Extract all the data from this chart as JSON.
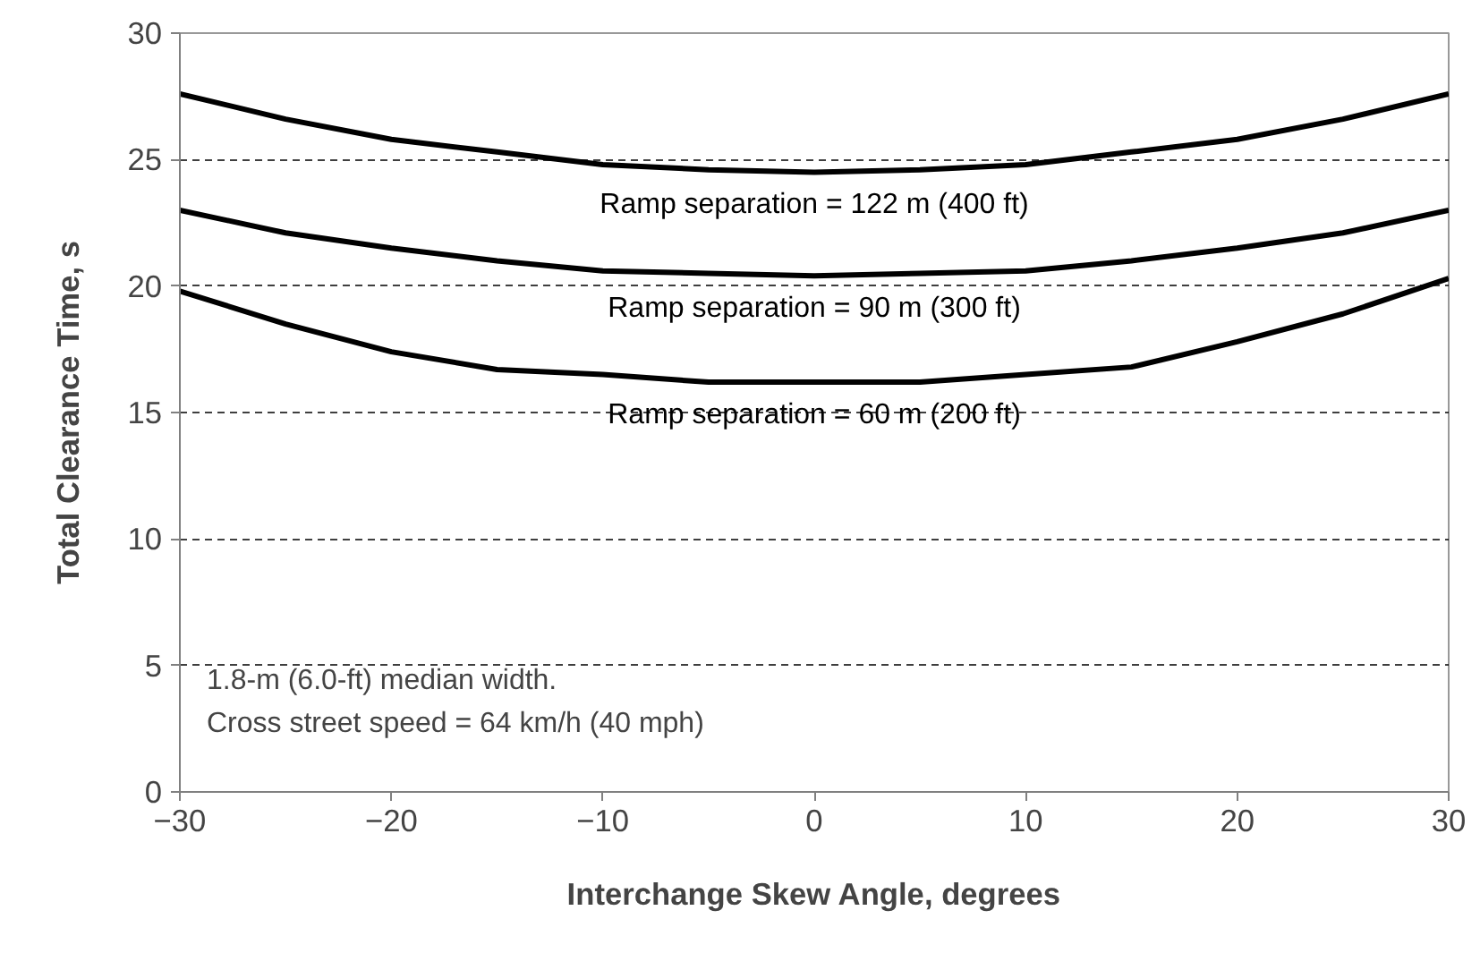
{
  "chart_data": {
    "type": "line",
    "xlabel": "Interchange Skew Angle, degrees",
    "ylabel": "Total Clearance Time, s",
    "x": [
      -30,
      -25,
      -20,
      -15,
      -10,
      -5,
      0,
      5,
      10,
      15,
      20,
      25,
      30
    ],
    "series": [
      {
        "name": "Ramp separation = 122 m (400 ft)",
        "color": "#000000",
        "values": [
          27.6,
          26.6,
          25.8,
          25.3,
          24.8,
          24.6,
          24.5,
          24.6,
          24.8,
          25.3,
          25.8,
          26.6,
          27.6
        ]
      },
      {
        "name": "Ramp separation = 90 m (300 ft)",
        "color": "#000000",
        "values": [
          23.0,
          22.1,
          21.5,
          21.0,
          20.6,
          20.5,
          20.4,
          20.5,
          20.6,
          21.0,
          21.5,
          22.1,
          23.0
        ]
      },
      {
        "name": "Ramp separation = 60 m (200 ft)",
        "color": "#000000",
        "values": [
          19.8,
          18.5,
          17.4,
          16.7,
          16.5,
          16.2,
          16.2,
          16.2,
          16.5,
          16.8,
          17.8,
          18.9,
          20.3
        ]
      }
    ],
    "annotations": [
      "1.8-m (6.0-ft) median width.",
      "Cross street speed = 64 km/h (40 mph)"
    ],
    "xlim": [
      -30,
      30
    ],
    "ylim": [
      0,
      30
    ],
    "xticks": [
      -30,
      -20,
      -10,
      0,
      10,
      20,
      30
    ],
    "yticks": [
      0,
      5,
      10,
      15,
      20,
      25,
      30
    ],
    "grid": "y",
    "legend": false,
    "marker": "none",
    "line_style": "solid"
  }
}
